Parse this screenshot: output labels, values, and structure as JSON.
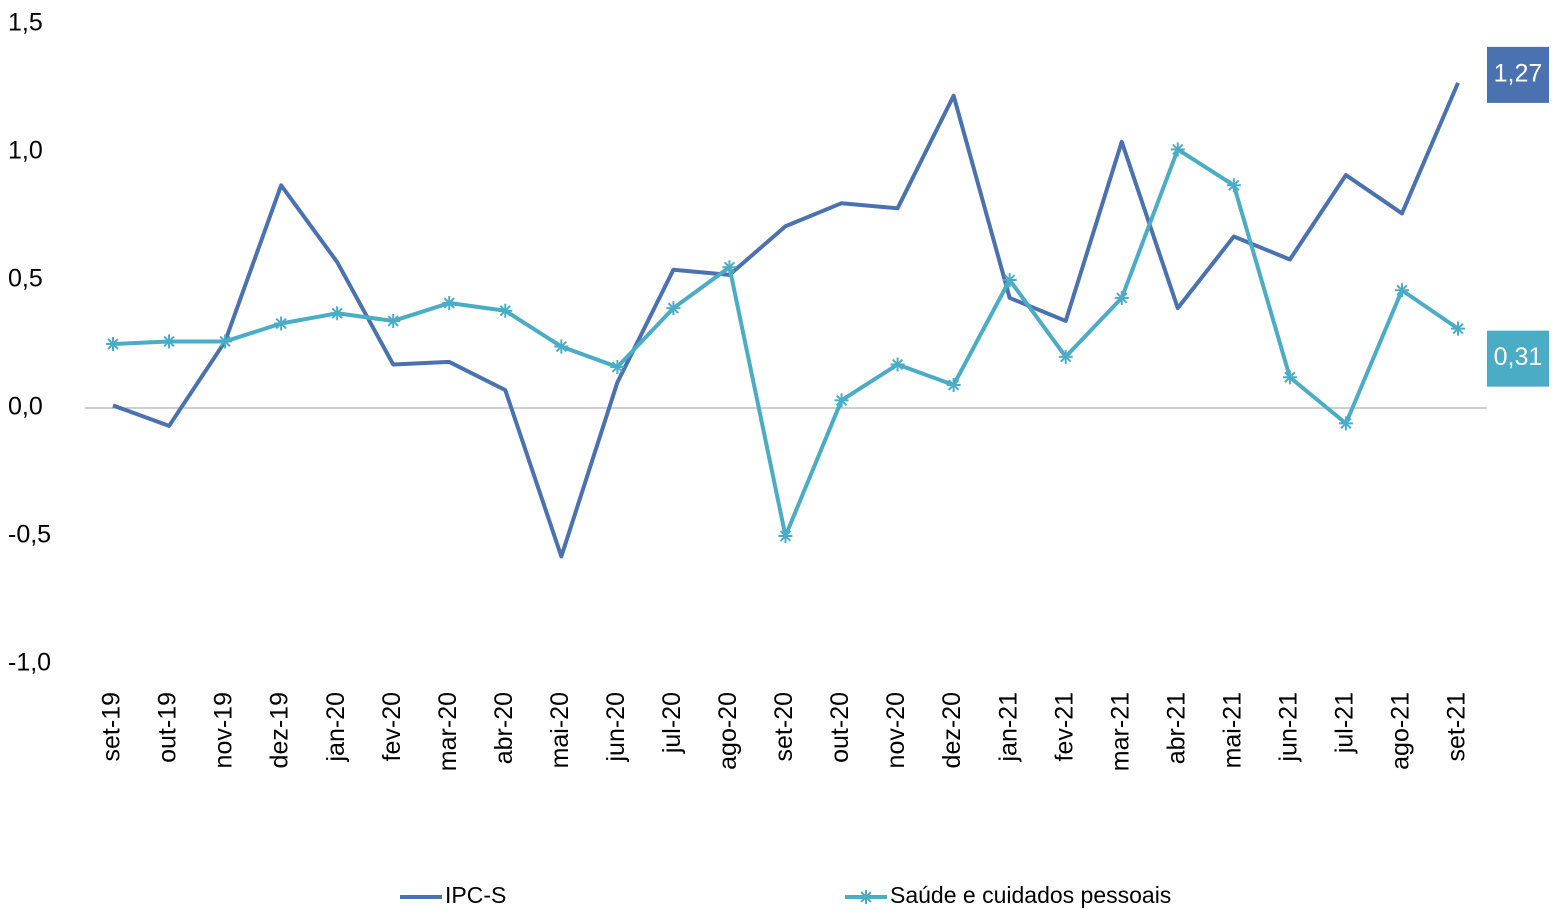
{
  "chart_data": {
    "type": "line",
    "categories": [
      "set-19",
      "out-19",
      "nov-19",
      "dez-19",
      "jan-20",
      "fev-20",
      "mar-20",
      "abr-20",
      "mai-20",
      "jun-20",
      "jul-20",
      "ago-20",
      "set-20",
      "out-20",
      "nov-20",
      "dez-20",
      "jan-21",
      "fev-21",
      "mar-21",
      "abr-21",
      "mai-21",
      "jun-21",
      "jul-21",
      "ago-21",
      "set-21"
    ],
    "series": [
      {
        "name": "IPC-S",
        "color": "#4a72b0",
        "marker": "none",
        "values": [
          0.01,
          -0.07,
          0.26,
          0.87,
          0.57,
          0.17,
          0.18,
          0.07,
          -0.58,
          0.1,
          0.54,
          0.52,
          0.71,
          0.8,
          0.78,
          1.22,
          0.43,
          0.34,
          1.04,
          0.39,
          0.67,
          0.58,
          0.91,
          0.76,
          1.27
        ],
        "value_labels": [
          null,
          null,
          null,
          null,
          null,
          null,
          null,
          null,
          null,
          null,
          null,
          null,
          null,
          null,
          null,
          null,
          null,
          null,
          null,
          null,
          null,
          null,
          null,
          null,
          "1,27"
        ]
      },
      {
        "name": "Saúde e cuidados pessoais",
        "color": "#4bacc6",
        "marker": "star",
        "values": [
          0.25,
          0.26,
          0.26,
          0.33,
          0.37,
          0.34,
          0.41,
          0.38,
          0.24,
          0.16,
          0.39,
          0.55,
          -0.5,
          0.03,
          0.17,
          0.09,
          0.5,
          0.2,
          0.43,
          1.01,
          0.87,
          0.12,
          -0.06,
          0.46,
          0.31
        ],
        "value_labels": [
          null,
          null,
          null,
          null,
          null,
          null,
          null,
          null,
          null,
          null,
          null,
          null,
          null,
          null,
          null,
          null,
          null,
          null,
          null,
          null,
          null,
          null,
          null,
          null,
          "0,31"
        ]
      }
    ],
    "ylim": [
      -1.0,
      1.5
    ],
    "yticks": [
      {
        "value": -1.0,
        "label": "-1,0"
      },
      {
        "value": -0.5,
        "label": "-0,5"
      },
      {
        "value": 0,
        "label": "0,0"
      },
      {
        "value": 0.5,
        "label": "0,5"
      },
      {
        "value": 1.0,
        "label": "1,0"
      },
      {
        "value": 1.5,
        "label": "1,5"
      }
    ],
    "legend": "bottom"
  }
}
